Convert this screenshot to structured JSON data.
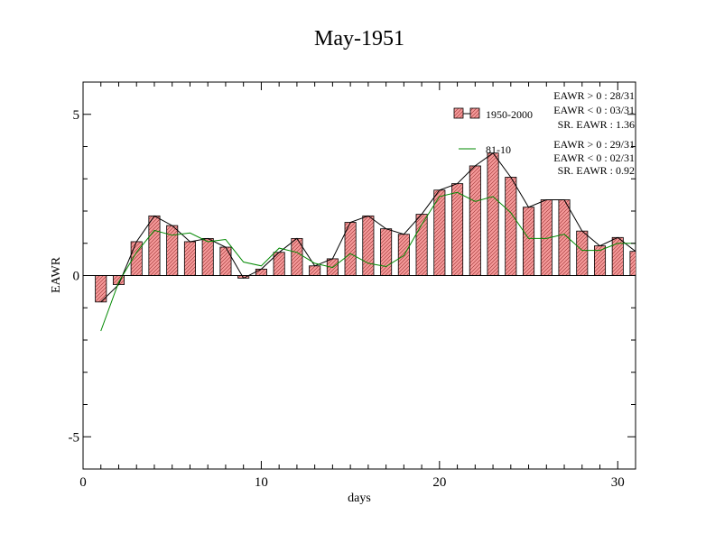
{
  "chart_data": {
    "type": "bar",
    "title": "May-1951",
    "xlabel": "days",
    "ylabel": "EAWR",
    "xlim": [
      0,
      31
    ],
    "ylim": [
      -6,
      6
    ],
    "xticks": [
      0,
      10,
      20,
      30
    ],
    "yticks": [
      -5,
      0,
      5
    ],
    "ytick_labels": [
      "-5",
      "0",
      "5"
    ],
    "grid": false,
    "legend_position": "top-right",
    "x": [
      1,
      2,
      3,
      4,
      5,
      6,
      7,
      8,
      9,
      10,
      11,
      12,
      13,
      14,
      15,
      16,
      17,
      18,
      19,
      20,
      21,
      22,
      23,
      24,
      25,
      26,
      27,
      28,
      29,
      30,
      31
    ],
    "series": [
      {
        "name": "1950-2000",
        "kind": "bar",
        "color": "#f28c8c",
        "values": [
          -0.82,
          -0.28,
          1.05,
          1.85,
          1.55,
          1.05,
          1.15,
          0.88,
          -0.08,
          0.2,
          0.72,
          1.15,
          0.3,
          0.52,
          1.65,
          1.85,
          1.45,
          1.28,
          1.9,
          2.65,
          2.85,
          3.4,
          3.8,
          3.05,
          2.12,
          2.35,
          2.35,
          1.38,
          0.92,
          1.18,
          0.75
        ]
      },
      {
        "name": "81-10",
        "kind": "line",
        "color": "#008800",
        "values": [
          -1.72,
          -0.2,
          0.72,
          1.4,
          1.25,
          1.32,
          1.05,
          1.12,
          0.42,
          0.3,
          0.85,
          0.72,
          0.38,
          0.25,
          0.68,
          0.38,
          0.28,
          0.62,
          1.58,
          2.45,
          2.58,
          2.3,
          2.45,
          1.95,
          1.15,
          1.15,
          1.28,
          0.78,
          0.78,
          1.0,
          1.0
        ]
      }
    ],
    "stats": [
      [
        "EAWR > 0 : 28/31",
        "EAWR < 0 : 03/31",
        "SR. EAWR :  1.36"
      ],
      [
        "EAWR > 0 : 29/31",
        "EAWR < 0 : 02/31",
        "SR. EAWR :  0.92"
      ]
    ]
  }
}
